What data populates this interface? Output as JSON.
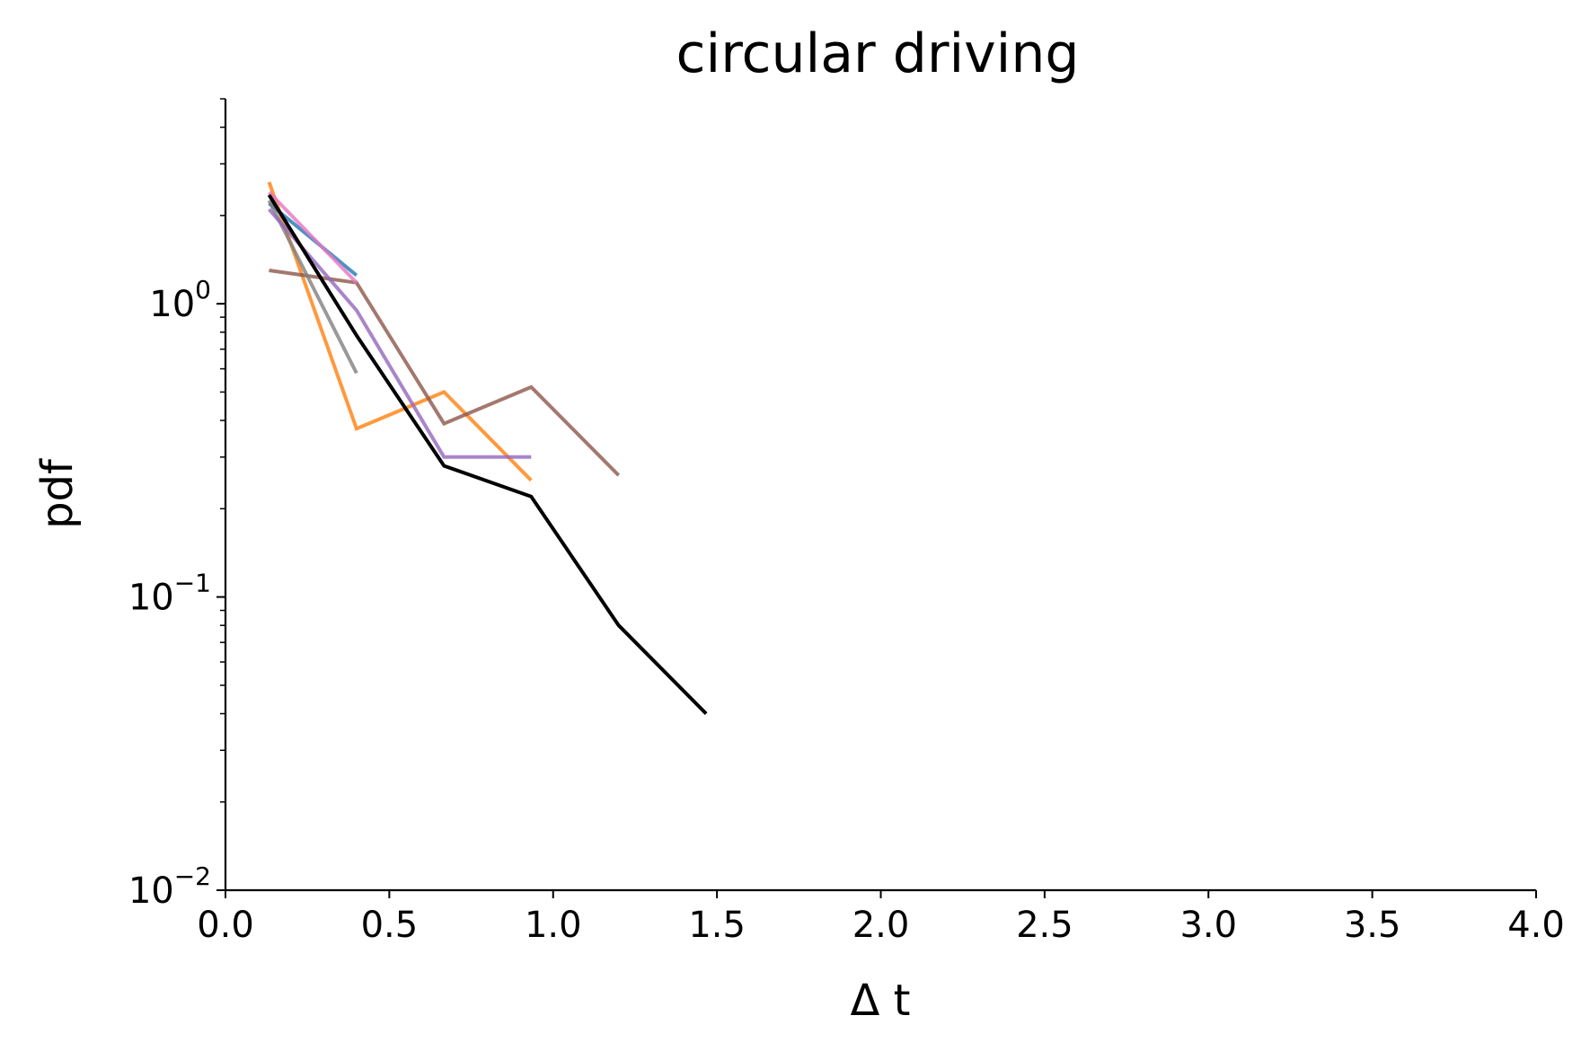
{
  "chart_data": {
    "type": "line",
    "title": "circular driving",
    "xlabel": "Δ t",
    "ylabel": "pdf",
    "xlim": [
      0,
      4
    ],
    "ylim": [
      0.01,
      5
    ],
    "yscale": "log",
    "grid": false,
    "x_ticks": [
      "0.0",
      "0.5",
      "1.0",
      "1.5",
      "2.0",
      "2.5",
      "3.0",
      "3.5",
      "4.0"
    ],
    "y_ticks": [
      {
        "base": "10",
        "exp": "0",
        "value": 1
      },
      {
        "base": "10",
        "exp": "−1",
        "value": 0.1
      },
      {
        "base": "10",
        "exp": "−2",
        "value": 0.01
      }
    ],
    "series": [
      {
        "color": "#1f77b4",
        "x": [
          0.133,
          0.4
        ],
        "y": [
          2.2,
          1.25
        ]
      },
      {
        "color": "#ff7f0e",
        "x": [
          0.133,
          0.4,
          0.667,
          0.933
        ],
        "y": [
          2.6,
          0.375,
          0.5,
          0.25
        ]
      },
      {
        "color": "#8c564b",
        "x": [
          0.133,
          0.4,
          0.667,
          0.933,
          1.2
        ],
        "y": [
          1.3,
          1.18,
          0.39,
          0.52,
          0.26
        ]
      },
      {
        "color": "#7f7f7f",
        "x": [
          0.133,
          0.4
        ],
        "y": [
          2.25,
          0.58
        ]
      },
      {
        "color": "#9467bd",
        "x": [
          0.133,
          0.4,
          0.667,
          0.933
        ],
        "y": [
          2.1,
          0.95,
          0.3,
          0.3
        ]
      },
      {
        "color": "#e377c2",
        "x": [
          0.133,
          0.4
        ],
        "y": [
          2.4,
          1.18
        ]
      },
      {
        "color": "#000000",
        "x": [
          0.133,
          0.4,
          0.667,
          0.933,
          1.2,
          1.467
        ],
        "y": [
          2.35,
          0.78,
          0.28,
          0.22,
          0.08,
          0.04
        ]
      }
    ]
  }
}
